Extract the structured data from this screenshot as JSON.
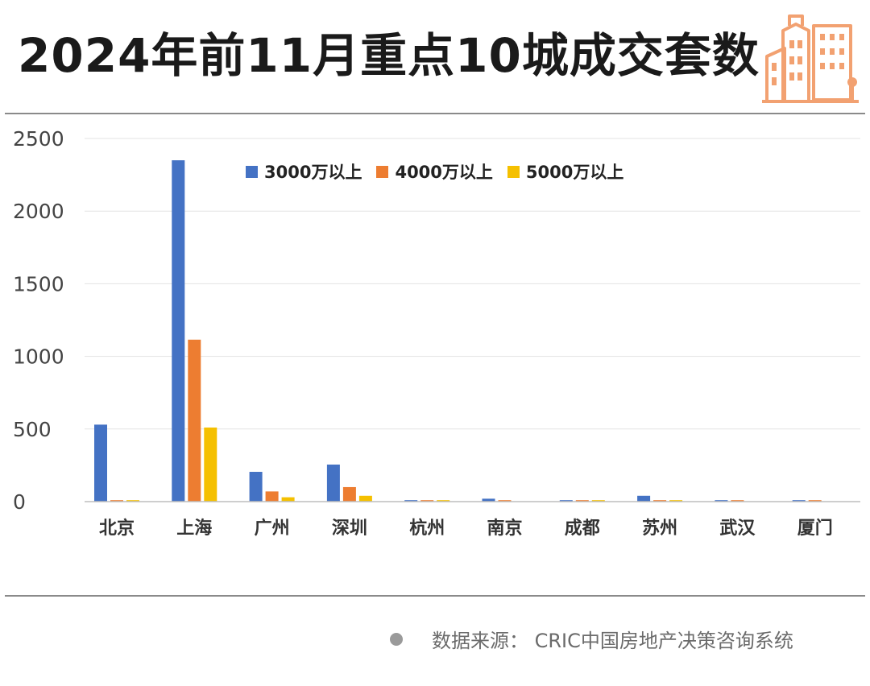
{
  "title": "2024年前11月重点10城成交套数",
  "source": "数据来源： CRIC中国房地产决策咨询系统",
  "colors": {
    "series": [
      "#4472C4",
      "#ED7D31",
      "#F5C000"
    ],
    "logo": "#F2A171",
    "grid": "#e3e3e3",
    "axis": "#444444"
  },
  "chart_data": {
    "type": "bar",
    "categories": [
      "北京",
      "上海",
      "广州",
      "深圳",
      "杭州",
      "南京",
      "成都",
      "苏州",
      "武汉",
      "厦门"
    ],
    "series": [
      {
        "name": "3000万以上",
        "values": [
          530,
          2350,
          205,
          255,
          10,
          20,
          10,
          40,
          10,
          10
        ]
      },
      {
        "name": "4000万以上",
        "values": [
          10,
          1115,
          70,
          100,
          10,
          10,
          10,
          10,
          10,
          10
        ]
      },
      {
        "name": "5000万以上",
        "values": [
          10,
          510,
          30,
          40,
          10,
          0,
          10,
          10,
          0,
          0
        ]
      }
    ],
    "yticks": [
      0,
      500,
      1000,
      1500,
      2000,
      2500
    ],
    "ylim": [
      0,
      2500
    ],
    "grid": true,
    "legend": "top-center"
  }
}
